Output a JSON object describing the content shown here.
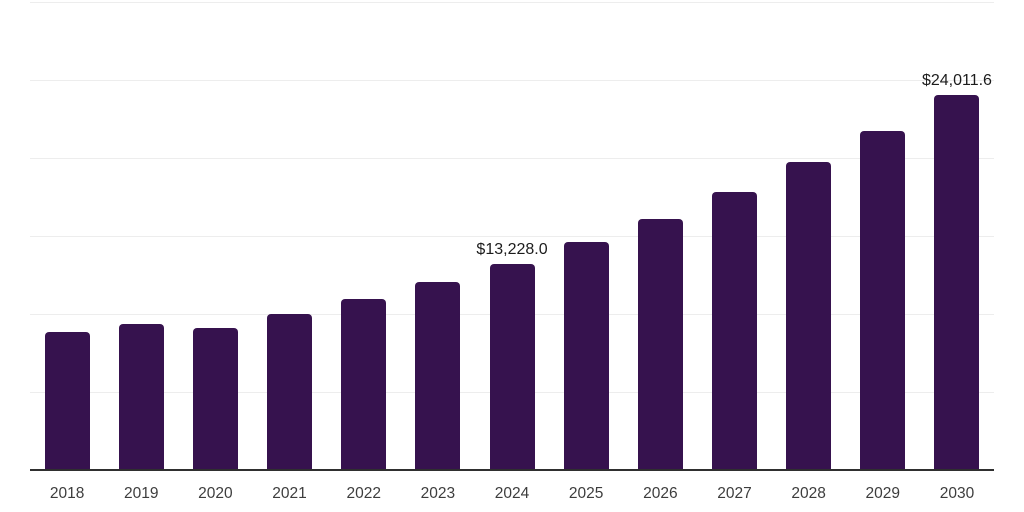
{
  "chart_data": {
    "type": "bar",
    "title": "",
    "xlabel": "",
    "ylabel": "",
    "categories": [
      "2018",
      "2019",
      "2020",
      "2021",
      "2022",
      "2023",
      "2024",
      "2025",
      "2026",
      "2027",
      "2028",
      "2029",
      "2030"
    ],
    "values": [
      8850,
      9360,
      9100,
      10000,
      10960,
      12050,
      13228.0,
      14615,
      16120,
      17820,
      19740,
      21730,
      24011.6
    ],
    "data_labels": [
      null,
      null,
      null,
      null,
      null,
      null,
      "$13,228.0",
      null,
      null,
      null,
      null,
      null,
      "$24,011.6"
    ],
    "ylim": [
      0,
      30000
    ],
    "gridline_step": 5000,
    "grid": "horizontal-only",
    "legend": "none",
    "colors": {
      "bar": "#36124E",
      "gridline": "#EDEDED",
      "axis_line": "#2F2F2F",
      "tick_label": "#3D3D3D",
      "data_label": "#1C1C1C",
      "background": "#FFFFFF"
    }
  }
}
